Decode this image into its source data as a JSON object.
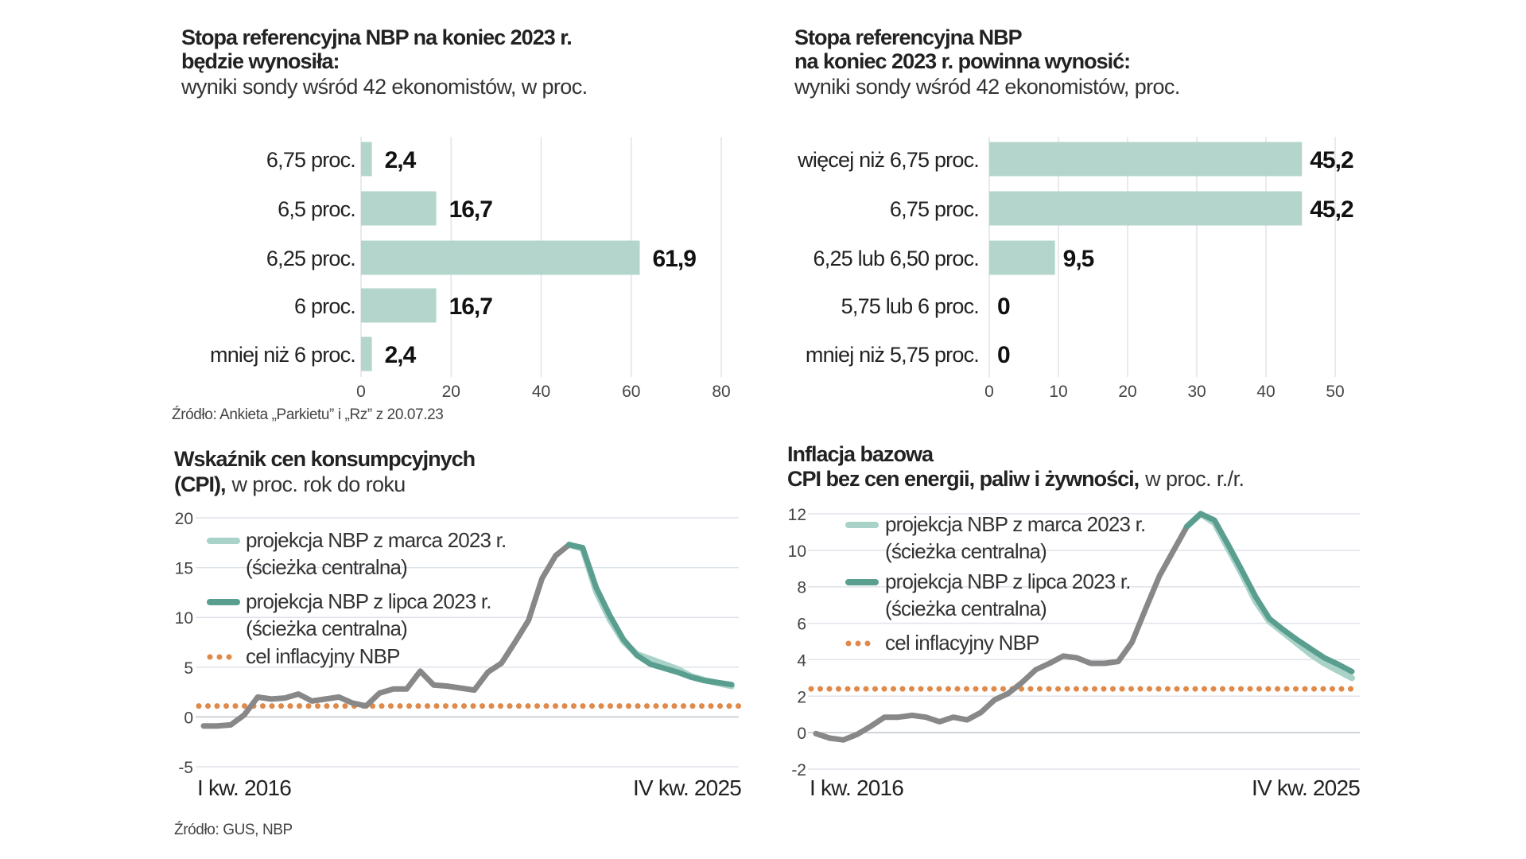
{
  "colors": {
    "bar": "#b3d5cc",
    "grid": "#dfe3ea",
    "actual": "#888888",
    "july": "#5a9e8f",
    "march": "#a9d3c8",
    "target": "#e08a4a",
    "text": "#222222"
  },
  "chart_data": [
    {
      "type": "bar",
      "orientation": "horizontal",
      "title_lines": [
        "Stopa referencyjna NBP na koniec 2023 r.",
        "będzie wynosiła:"
      ],
      "subtitle": "wyniki sondy wśród 42 ekonomistów, w proc.",
      "categories": [
        "6,75 proc.",
        "6,5 proc.",
        "6,25 proc.",
        "6 proc.",
        "mniej niż 6 proc."
      ],
      "values": [
        2.4,
        16.7,
        61.9,
        16.7,
        2.4
      ],
      "value_labels": [
        "2,4",
        "16,7",
        "61,9",
        "16,7",
        "2,4"
      ],
      "xlim": [
        0,
        80
      ],
      "xticks": [
        0,
        20,
        40,
        60,
        80
      ],
      "grid": true,
      "source": "Źródło: Ankieta „Parkietu” i „Rz” z 20.07.23"
    },
    {
      "type": "bar",
      "orientation": "horizontal",
      "title_lines": [
        "Stopa referencyjna NBP",
        "na koniec 2023 r. powinna wynosić:"
      ],
      "subtitle": "wyniki sondy wśród 42 ekonomistów, proc.",
      "categories": [
        "więcej niż 6,75 proc.",
        "6,75 proc.",
        "6,25 lub 6,50 proc.",
        "5,75 lub 6 proc.",
        "mniej niż 5,75 proc."
      ],
      "values": [
        45.2,
        45.2,
        9.5,
        0,
        0
      ],
      "value_labels": [
        "45,2",
        "45,2",
        "9,5",
        "0",
        "0"
      ],
      "xlim": [
        0,
        50
      ],
      "xticks": [
        0,
        10,
        20,
        30,
        40,
        50
      ],
      "grid": true
    },
    {
      "type": "line",
      "title_lines": [
        "Wskaźnik cen konsumpcyjnych",
        "(CPI),"
      ],
      "subtitle": "w proc. rok do roku",
      "ylim": [
        -5,
        20
      ],
      "yticks": [
        -5,
        0,
        5,
        10,
        15,
        20
      ],
      "x_start_label": "I kw. 2016",
      "x_end_label": "IV kw. 2025",
      "n_points": 40,
      "actual": {
        "start": 0,
        "values": [
          -0.9,
          -0.9,
          -0.8,
          0.2,
          2.0,
          1.8,
          1.9,
          2.3,
          1.6,
          1.8,
          2.0,
          1.4,
          1.1,
          2.4,
          2.8,
          2.8,
          4.6,
          3.2,
          3.1,
          2.9,
          2.7,
          4.5,
          5.4,
          7.5,
          9.7,
          13.9,
          16.2,
          17.3
        ]
      },
      "march": {
        "start": 27,
        "values": [
          17.3,
          16.9,
          12.6,
          9.8,
          7.6,
          6.3,
          5.8,
          5.3,
          4.8,
          4.1,
          3.7,
          3.4,
          3.1
        ]
      },
      "july": {
        "start": 27,
        "values": [
          17.3,
          17.0,
          13.0,
          10.2,
          7.8,
          6.2,
          5.3,
          4.9,
          4.5,
          4.0,
          3.65,
          3.45,
          3.25
        ]
      },
      "target": 1.1,
      "legend": [
        {
          "label": "projekcja NBP z marca 2023 r.",
          "sublabel": "(ścieżka centralna)",
          "series": "march"
        },
        {
          "label": "projekcja NBP z lipca 2023 r.",
          "sublabel": "(ścieżka centralna)",
          "series": "july"
        },
        {
          "label": "cel inflacyjny NBP",
          "series": "target"
        }
      ],
      "source": "Źródło: GUS, NBP"
    },
    {
      "type": "line",
      "title_lines": [
        "Inflacja bazowa",
        "CPI bez cen energii, paliw i żywności,"
      ],
      "subtitle": "w proc. r./r.",
      "ylim": [
        -2,
        12
      ],
      "yticks": [
        -2,
        0,
        2,
        4,
        6,
        8,
        10,
        12
      ],
      "x_start_label": "I kw. 2016",
      "x_end_label": "IV kw. 2025",
      "n_points": 40,
      "actual": {
        "start": 0,
        "values": [
          -0.05,
          -0.3,
          -0.4,
          -0.1,
          0.35,
          0.85,
          0.85,
          0.95,
          0.85,
          0.6,
          0.85,
          0.7,
          1.1,
          1.8,
          2.15,
          2.75,
          3.45,
          3.8,
          4.2,
          4.1,
          3.8,
          3.8,
          3.9,
          4.95,
          6.8,
          8.6,
          9.95,
          11.3
        ]
      },
      "march": {
        "start": 27,
        "values": [
          11.3,
          12.0,
          11.5,
          10.1,
          8.7,
          7.2,
          6.1,
          5.5,
          4.9,
          4.3,
          3.8,
          3.4,
          3.0
        ]
      },
      "july": {
        "start": 27,
        "values": [
          11.3,
          12.0,
          11.65,
          10.3,
          8.9,
          7.45,
          6.25,
          5.65,
          5.1,
          4.6,
          4.1,
          3.75,
          3.35
        ]
      },
      "target": 2.4,
      "legend": [
        {
          "label": "projekcja NBP z marca 2023 r.",
          "sublabel": "(ścieżka centralna)",
          "series": "march"
        },
        {
          "label": "projekcja NBP z lipca 2023 r.",
          "sublabel": "(ścieżka centralna)",
          "series": "july"
        },
        {
          "label": "cel inflacyjny NBP",
          "series": "target"
        }
      ]
    }
  ]
}
